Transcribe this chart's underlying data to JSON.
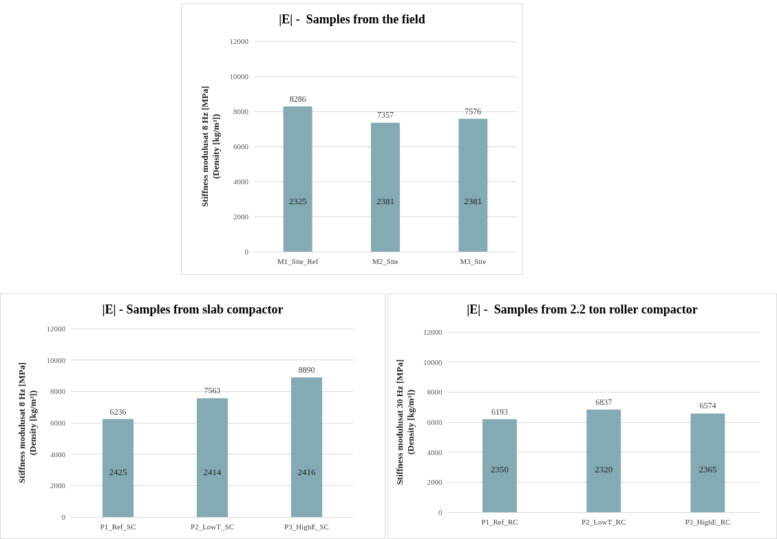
{
  "chart_data": [
    {
      "type": "bar",
      "title": "|E| -  Samples from the field",
      "ylabel": "Stiffness modulusat 8 Hz [MPa]\n(Density [kg/m³])",
      "categories": [
        "M1_Site_Ref",
        "M2_Site",
        "M3_Site"
      ],
      "values": [
        8286,
        7357,
        7576
      ],
      "color": "#84abb4",
      "ylim": [
        0,
        12000
      ],
      "yticks": [
        0,
        2000,
        4000,
        6000,
        8000,
        10000,
        12000
      ],
      "grid": "y",
      "data_labels": true,
      "annotations": [
        "2325",
        "2381",
        "2381"
      ]
    },
    {
      "type": "bar",
      "title": "|E| - Samples from slab compactor",
      "ylabel": "Stiffness modulusat 8 Hz [MPa]\n(Density [kg/m³])",
      "categories": [
        "P1_Ref_SC",
        "P2_LowT_SC",
        "P3_HighE_SC"
      ],
      "values": [
        6236,
        7563,
        8890
      ],
      "color": "#84abb4",
      "ylim": [
        0,
        12000
      ],
      "yticks": [
        0,
        2000,
        4000,
        6000,
        8000,
        10000,
        12000
      ],
      "grid": "y",
      "data_labels": true,
      "annotations": [
        "2425",
        "2414",
        "2416"
      ]
    },
    {
      "type": "bar",
      "title": "|E| -  Samples from 2.2 ton roller compactor",
      "ylabel": "Stiffness modulusat 30 Hz [MPa]\n(Density [kg/m³])",
      "categories": [
        "P1_Ref_RC",
        "P2_LowT_RC",
        "P3_HighE_RC"
      ],
      "values": [
        6193,
        6837,
        6574
      ],
      "color": "#84abb4",
      "ylim": [
        0,
        12000
      ],
      "yticks": [
        0,
        2000,
        4000,
        6000,
        8000,
        10000,
        12000
      ],
      "grid": "y",
      "data_labels": true,
      "annotations": [
        "2350",
        "2320",
        "2365"
      ]
    }
  ]
}
